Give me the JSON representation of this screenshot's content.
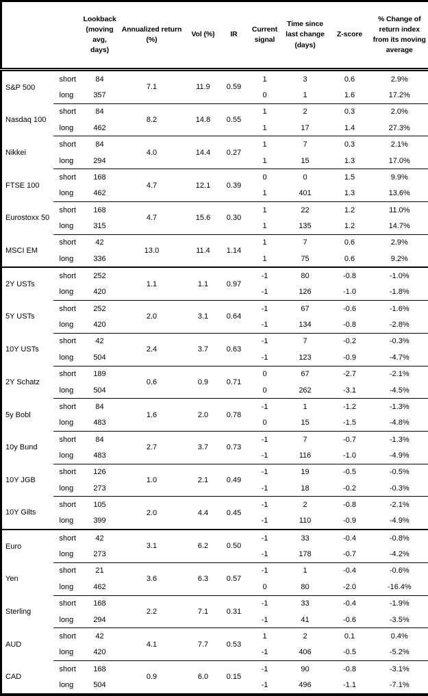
{
  "table": {
    "headers": {
      "asset": "",
      "horizon": "",
      "lookback": "Lookback (moving avg, days)",
      "annualized_return": "Annualized return (%)",
      "vol": "Vol (%)",
      "ir": "IR",
      "current_signal": "Current signal",
      "time_since": "Time since last change (days)",
      "z_score": "Z-score",
      "pct_change": "% Change of return index from its moving average"
    },
    "groups": [
      {
        "asset": "S&P 500",
        "annualized_return": "7.1",
        "vol": "11.9",
        "ir": "0.59",
        "section_start": false,
        "rows": [
          {
            "horizon": "short",
            "lookback": "84",
            "signal": "1",
            "time_since": "3",
            "z_score": "0.6",
            "pct_change": "2.9%"
          },
          {
            "horizon": "long",
            "lookback": "357",
            "signal": "0",
            "time_since": "1",
            "z_score": "1.6",
            "pct_change": "17.2%"
          }
        ]
      },
      {
        "asset": "Nasdaq 100",
        "annualized_return": "8.2",
        "vol": "14.8",
        "ir": "0.55",
        "section_start": false,
        "rows": [
          {
            "horizon": "short",
            "lookback": "84",
            "signal": "1",
            "time_since": "2",
            "z_score": "0.3",
            "pct_change": "2.0%"
          },
          {
            "horizon": "long",
            "lookback": "462",
            "signal": "1",
            "time_since": "17",
            "z_score": "1.4",
            "pct_change": "27.3%"
          }
        ]
      },
      {
        "asset": "Nikkei",
        "annualized_return": "4.0",
        "vol": "14.4",
        "ir": "0.27",
        "section_start": false,
        "rows": [
          {
            "horizon": "short",
            "lookback": "84",
            "signal": "1",
            "time_since": "7",
            "z_score": "0.3",
            "pct_change": "2.1%"
          },
          {
            "horizon": "long",
            "lookback": "294",
            "signal": "1",
            "time_since": "15",
            "z_score": "1.3",
            "pct_change": "17.0%"
          }
        ]
      },
      {
        "asset": "FTSE 100",
        "annualized_return": "4.7",
        "vol": "12.1",
        "ir": "0.39",
        "section_start": false,
        "rows": [
          {
            "horizon": "short",
            "lookback": "168",
            "signal": "0",
            "time_since": "0",
            "z_score": "1.5",
            "pct_change": "9.9%"
          },
          {
            "horizon": "long",
            "lookback": "462",
            "signal": "1",
            "time_since": "401",
            "z_score": "1.3",
            "pct_change": "13.6%"
          }
        ]
      },
      {
        "asset": "Eurostoxx 50",
        "annualized_return": "4.7",
        "vol": "15.6",
        "ir": "0.30",
        "section_start": false,
        "rows": [
          {
            "horizon": "short",
            "lookback": "168",
            "signal": "1",
            "time_since": "22",
            "z_score": "1.2",
            "pct_change": "11.0%"
          },
          {
            "horizon": "long",
            "lookback": "315",
            "signal": "1",
            "time_since": "135",
            "z_score": "1.2",
            "pct_change": "14.7%"
          }
        ]
      },
      {
        "asset": "MSCI EM",
        "annualized_return": "13.0",
        "vol": "11.4",
        "ir": "1.14",
        "section_start": false,
        "rows": [
          {
            "horizon": "short",
            "lookback": "42",
            "signal": "1",
            "time_since": "7",
            "z_score": "0.6",
            "pct_change": "2.9%"
          },
          {
            "horizon": "long",
            "lookback": "336",
            "signal": "1",
            "time_since": "75",
            "z_score": "0.6",
            "pct_change": "9.2%"
          }
        ]
      },
      {
        "asset": "2Y USTs",
        "annualized_return": "1.1",
        "vol": "1.1",
        "ir": "0.97",
        "section_start": true,
        "rows": [
          {
            "horizon": "short",
            "lookback": "252",
            "signal": "-1",
            "time_since": "80",
            "z_score": "-0.8",
            "pct_change": "-1.0%"
          },
          {
            "horizon": "long",
            "lookback": "420",
            "signal": "-1",
            "time_since": "126",
            "z_score": "-1.0",
            "pct_change": "-1.8%"
          }
        ]
      },
      {
        "asset": "5Y USTs",
        "annualized_return": "2.0",
        "vol": "3.1",
        "ir": "0.64",
        "section_start": false,
        "rows": [
          {
            "horizon": "short",
            "lookback": "252",
            "signal": "-1",
            "time_since": "67",
            "z_score": "-0.6",
            "pct_change": "-1.6%"
          },
          {
            "horizon": "long",
            "lookback": "420",
            "signal": "-1",
            "time_since": "134",
            "z_score": "-0.8",
            "pct_change": "-2.8%"
          }
        ]
      },
      {
        "asset": "10Y USTs",
        "annualized_return": "2.4",
        "vol": "3.7",
        "ir": "0.63",
        "section_start": false,
        "rows": [
          {
            "horizon": "short",
            "lookback": "42",
            "signal": "-1",
            "time_since": "7",
            "z_score": "-0.2",
            "pct_change": "-0.3%"
          },
          {
            "horizon": "long",
            "lookback": "504",
            "signal": "-1",
            "time_since": "123",
            "z_score": "-0.9",
            "pct_change": "-4.7%"
          }
        ]
      },
      {
        "asset": "2Y Schatz",
        "annualized_return": "0.6",
        "vol": "0.9",
        "ir": "0.71",
        "section_start": false,
        "rows": [
          {
            "horizon": "short",
            "lookback": "189",
            "signal": "0",
            "time_since": "67",
            "z_score": "-2.7",
            "pct_change": "-2.1%"
          },
          {
            "horizon": "long",
            "lookback": "504",
            "signal": "0",
            "time_since": "262",
            "z_score": "-3.1",
            "pct_change": "-4.5%"
          }
        ]
      },
      {
        "asset": "5y Bobl",
        "annualized_return": "1.6",
        "vol": "2.0",
        "ir": "0.78",
        "section_start": false,
        "rows": [
          {
            "horizon": "short",
            "lookback": "84",
            "signal": "-1",
            "time_since": "1",
            "z_score": "-1.2",
            "pct_change": "-1.3%"
          },
          {
            "horizon": "long",
            "lookback": "483",
            "signal": "0",
            "time_since": "15",
            "z_score": "-1.5",
            "pct_change": "-4.8%"
          }
        ]
      },
      {
        "asset": "10y Bund",
        "annualized_return": "2.7",
        "vol": "3.7",
        "ir": "0.73",
        "section_start": false,
        "rows": [
          {
            "horizon": "short",
            "lookback": "84",
            "signal": "-1",
            "time_since": "7",
            "z_score": "-0.7",
            "pct_change": "-1.3%"
          },
          {
            "horizon": "long",
            "lookback": "483",
            "signal": "-1",
            "time_since": "116",
            "z_score": "-1.0",
            "pct_change": "-4.9%"
          }
        ]
      },
      {
        "asset": "10Y JGB",
        "annualized_return": "1.0",
        "vol": "2.1",
        "ir": "0.49",
        "section_start": false,
        "rows": [
          {
            "horizon": "short",
            "lookback": "126",
            "signal": "-1",
            "time_since": "19",
            "z_score": "-0.5",
            "pct_change": "-0.5%"
          },
          {
            "horizon": "long",
            "lookback": "273",
            "signal": "-1",
            "time_since": "18",
            "z_score": "-0.2",
            "pct_change": "-0.3%"
          }
        ]
      },
      {
        "asset": "10Y Gilts",
        "annualized_return": "2.0",
        "vol": "4.4",
        "ir": "0.45",
        "section_start": false,
        "rows": [
          {
            "horizon": "short",
            "lookback": "105",
            "signal": "-1",
            "time_since": "2",
            "z_score": "-0.8",
            "pct_change": "-2.1%"
          },
          {
            "horizon": "long",
            "lookback": "399",
            "signal": "-1",
            "time_since": "110",
            "z_score": "-0.9",
            "pct_change": "-4.9%"
          }
        ]
      },
      {
        "asset": "Euro",
        "annualized_return": "3.1",
        "vol": "6.2",
        "ir": "0.50",
        "section_start": true,
        "rows": [
          {
            "horizon": "short",
            "lookback": "42",
            "signal": "-1",
            "time_since": "33",
            "z_score": "-0.4",
            "pct_change": "-0.8%"
          },
          {
            "horizon": "long",
            "lookback": "273",
            "signal": "-1",
            "time_since": "178",
            "z_score": "-0.7",
            "pct_change": "-4.2%"
          }
        ]
      },
      {
        "asset": "Yen",
        "annualized_return": "3.6",
        "vol": "6.3",
        "ir": "0.57",
        "section_start": false,
        "rows": [
          {
            "horizon": "short",
            "lookback": "21",
            "signal": "-1",
            "time_since": "1",
            "z_score": "-0.4",
            "pct_change": "-0.6%"
          },
          {
            "horizon": "long",
            "lookback": "462",
            "signal": "0",
            "time_since": "80",
            "z_score": "-2.0",
            "pct_change": "-16.4%"
          }
        ]
      },
      {
        "asset": "Sterling",
        "annualized_return": "2.2",
        "vol": "7.1",
        "ir": "0.31",
        "section_start": false,
        "rows": [
          {
            "horizon": "short",
            "lookback": "168",
            "signal": "-1",
            "time_since": "33",
            "z_score": "-0.4",
            "pct_change": "-1.9%"
          },
          {
            "horizon": "long",
            "lookback": "294",
            "signal": "-1",
            "time_since": "41",
            "z_score": "-0.6",
            "pct_change": "-3.5%"
          }
        ]
      },
      {
        "asset": "AUD",
        "annualized_return": "4.1",
        "vol": "7.7",
        "ir": "0.53",
        "section_start": false,
        "rows": [
          {
            "horizon": "short",
            "lookback": "42",
            "signal": "1",
            "time_since": "2",
            "z_score": "0.1",
            "pct_change": "0.4%"
          },
          {
            "horizon": "long",
            "lookback": "420",
            "signal": "-1",
            "time_since": "406",
            "z_score": "-0.5",
            "pct_change": "-5.2%"
          }
        ]
      },
      {
        "asset": "CAD",
        "annualized_return": "0.9",
        "vol": "6.0",
        "ir": "0.15",
        "section_start": false,
        "rows": [
          {
            "horizon": "short",
            "lookback": "168",
            "signal": "-1",
            "time_since": "90",
            "z_score": "-0.8",
            "pct_change": "-3.1%"
          },
          {
            "horizon": "long",
            "lookback": "504",
            "signal": "-1",
            "time_since": "496",
            "z_score": "-1.1",
            "pct_change": "-7.1%"
          }
        ]
      }
    ]
  }
}
